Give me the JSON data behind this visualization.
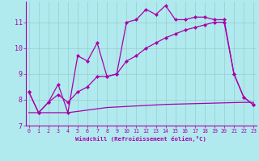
{
  "xlabel": "Windchill (Refroidissement éolien,°C)",
  "background_color": "#b0eaee",
  "grid_color": "#99cccc",
  "line_color": "#aa00aa",
  "xmin": 0,
  "xmax": 23,
  "ymin": 7,
  "ymax": 11.8,
  "x_ticks": [
    0,
    1,
    2,
    3,
    4,
    5,
    6,
    7,
    8,
    9,
    10,
    11,
    12,
    13,
    14,
    15,
    16,
    17,
    18,
    19,
    20,
    21,
    22,
    23
  ],
  "y_ticks": [
    7,
    8,
    9,
    10,
    11
  ],
  "series1_x": [
    0,
    1,
    2,
    3,
    4,
    5,
    6,
    7,
    8,
    9,
    10,
    11,
    12,
    13,
    14,
    15,
    16,
    17,
    18,
    19,
    20,
    21,
    22,
    23
  ],
  "series1_y": [
    8.3,
    7.5,
    7.9,
    8.6,
    7.5,
    9.7,
    9.5,
    10.2,
    8.9,
    9.0,
    11.0,
    11.1,
    11.5,
    11.3,
    11.65,
    11.1,
    11.1,
    11.2,
    11.2,
    11.1,
    11.1,
    9.0,
    8.1,
    7.8
  ],
  "series2_x": [
    0,
    1,
    2,
    3,
    4,
    5,
    6,
    7,
    8,
    9,
    10,
    11,
    12,
    13,
    14,
    15,
    16,
    17,
    18,
    19,
    20,
    21,
    22,
    23
  ],
  "series2_y": [
    8.3,
    7.5,
    7.9,
    8.2,
    7.9,
    8.3,
    8.5,
    8.9,
    8.9,
    9.0,
    9.5,
    9.7,
    10.0,
    10.2,
    10.4,
    10.55,
    10.7,
    10.8,
    10.9,
    11.0,
    11.0,
    9.0,
    8.1,
    7.8
  ],
  "series3_x": [
    0,
    1,
    2,
    3,
    4,
    5,
    6,
    7,
    8,
    9,
    10,
    11,
    12,
    13,
    14,
    15,
    16,
    17,
    18,
    19,
    20,
    21,
    22,
    23
  ],
  "series3_y": [
    7.5,
    7.5,
    7.5,
    7.5,
    7.5,
    7.55,
    7.6,
    7.65,
    7.7,
    7.72,
    7.74,
    7.76,
    7.78,
    7.8,
    7.82,
    7.83,
    7.84,
    7.85,
    7.86,
    7.87,
    7.88,
    7.89,
    7.9,
    7.9
  ]
}
